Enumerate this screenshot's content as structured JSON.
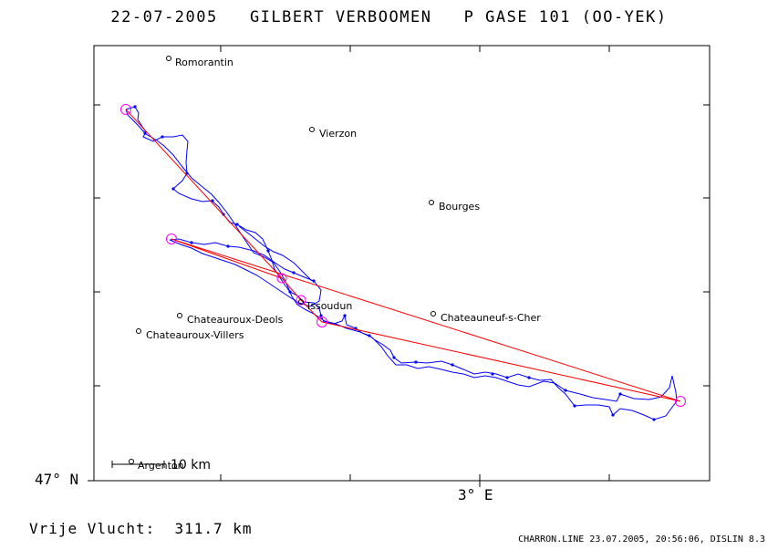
{
  "header": {
    "title": "22-07-2005   GILBERT VERBOOMEN   P GASE 101 (OO-YEK)"
  },
  "axes": {
    "lat_label": "47° N",
    "lon_label": "3° E"
  },
  "scale": {
    "label": "10 km"
  },
  "places": [
    {
      "name": "Romorantin"
    },
    {
      "name": "Vierzon"
    },
    {
      "name": "Bourges"
    },
    {
      "name": "Issoudun"
    },
    {
      "name": "Chateauneuf-s-Cher"
    },
    {
      "name": "Chateauroux-Deols"
    },
    {
      "name": "Chateauroux-Villers"
    },
    {
      "name": "Argenton"
    }
  ],
  "footer": {
    "distance": "Vrije Vlucht:  311.7 km",
    "source": "CHARRON.LINE 23.07.2005, 20:56:06, DISLIN 8.3"
  },
  "colors": {
    "track": "#0000ff",
    "task": "#ff0000",
    "turnpoint": "#ff00ff",
    "frame": "#000000"
  }
}
